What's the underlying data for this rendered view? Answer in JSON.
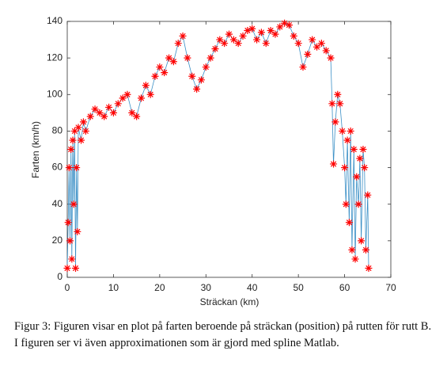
{
  "chart_data": {
    "type": "line",
    "xlabel": "Sträckan (km)",
    "ylabel": "Farten (km/h)",
    "xlim": [
      0,
      70
    ],
    "xticks": [
      0,
      10,
      20,
      30,
      40,
      50,
      60,
      70
    ],
    "ylim": [
      0,
      140
    ],
    "yticks": [
      0,
      20,
      40,
      60,
      80,
      100,
      120,
      140
    ],
    "grid": false,
    "marker": "*",
    "x": [
      0,
      0.2,
      0.4,
      0.6,
      0.8,
      1.0,
      1.2,
      1.4,
      1.6,
      1.8,
      2.0,
      2.2,
      2.4,
      3,
      3.5,
      4,
      5,
      6,
      7,
      8,
      9,
      10,
      11,
      12,
      13,
      14,
      15,
      16,
      17,
      18,
      19,
      20,
      21,
      22,
      23,
      24,
      25,
      26,
      27,
      28,
      29,
      30,
      31,
      32,
      33,
      34,
      35,
      36,
      37,
      38,
      39,
      40,
      41,
      42,
      43,
      44,
      45,
      46,
      47,
      48,
      49,
      50,
      51,
      52,
      53,
      54,
      55,
      56,
      57,
      57.3,
      57.6,
      58,
      58.5,
      59,
      59.5,
      60,
      60.3,
      60.6,
      61,
      61.3,
      61.6,
      62,
      62.3,
      62.6,
      63,
      63.3,
      63.6,
      64,
      64.3,
      64.6,
      65,
      65.2
    ],
    "series": [
      {
        "color": "#ff0000",
        "line_color": "#3a8fc6",
        "values": [
          5,
          30,
          60,
          20,
          70,
          10,
          75,
          40,
          80,
          5,
          60,
          25,
          82,
          75,
          85,
          80,
          88,
          92,
          90,
          88,
          93,
          90,
          95,
          98,
          100,
          90,
          88,
          98,
          105,
          100,
          110,
          115,
          112,
          120,
          118,
          128,
          132,
          120,
          110,
          103,
          108,
          115,
          120,
          125,
          130,
          128,
          133,
          130,
          128,
          132,
          135,
          136,
          130,
          134,
          128,
          135,
          133,
          137,
          139,
          138,
          132,
          128,
          115,
          122,
          130,
          126,
          128,
          124,
          120,
          95,
          62,
          85,
          100,
          95,
          80,
          60,
          40,
          75,
          30,
          80,
          15,
          70,
          10,
          55,
          40,
          65,
          20,
          70,
          60,
          15,
          45,
          5
        ]
      }
    ]
  },
  "caption": "Figur 3: Figuren visar en plot på farten beroende på sträckan (position) på rutten för rutt B. I figuren ser vi även approximationen som är gjord med spline Matlab."
}
